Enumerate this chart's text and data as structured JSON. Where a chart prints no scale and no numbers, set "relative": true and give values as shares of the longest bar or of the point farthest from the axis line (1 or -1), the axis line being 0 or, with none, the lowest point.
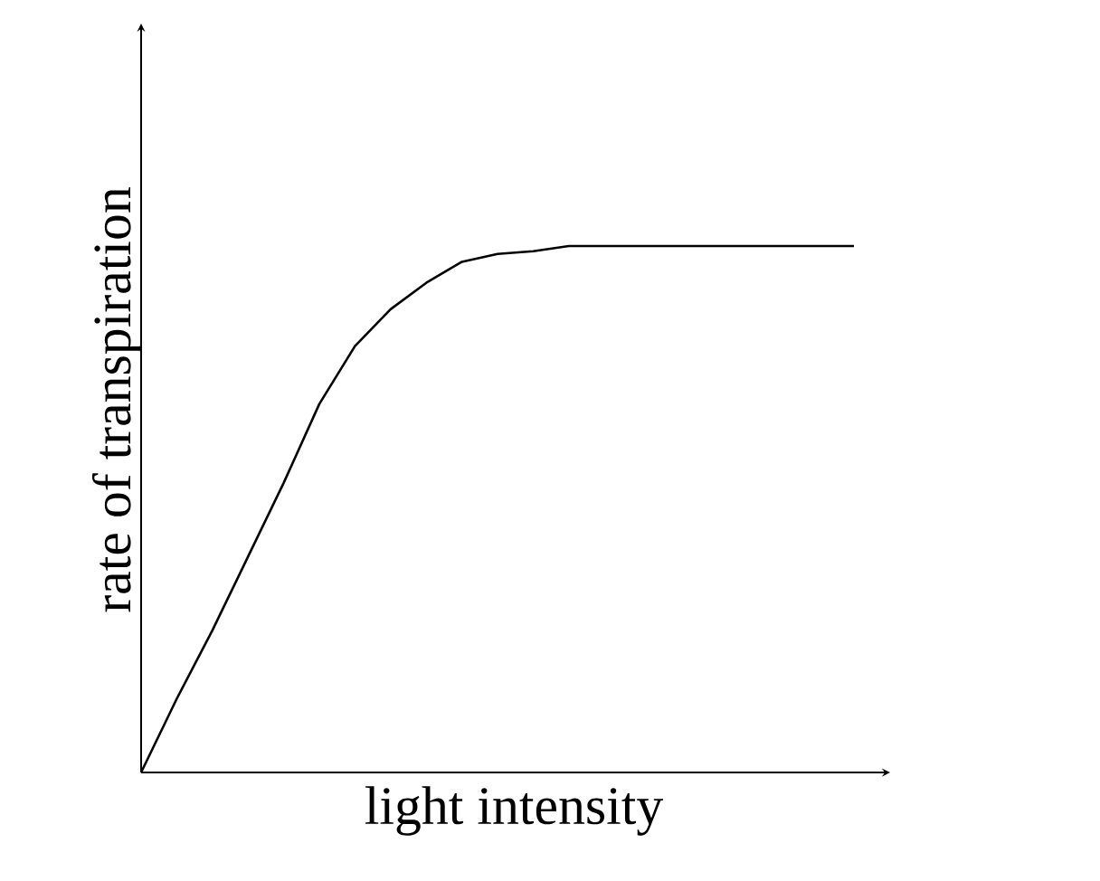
{
  "chart_data": {
    "type": "line",
    "relative": true,
    "xlabel": "light intensity",
    "ylabel": "rate of transpiration",
    "categories": [
      null,
      null,
      null,
      null,
      null,
      null,
      null,
      null,
      null,
      null,
      null,
      null,
      null,
      null,
      null,
      null,
      null,
      null,
      null,
      null,
      null
    ],
    "series": [
      {
        "color": "#000000",
        "values": [
          0,
          0.14,
          0.27,
          0.41,
          0.55,
          0.7,
          0.81,
          0.88,
          0.93,
          0.97,
          0.985,
          0.99,
          1.0,
          1.0,
          1.0,
          1.0,
          1.0,
          1.0,
          1.0,
          1.0,
          1.0
        ]
      }
    ],
    "line_style": "solid",
    "marker": "none"
  }
}
